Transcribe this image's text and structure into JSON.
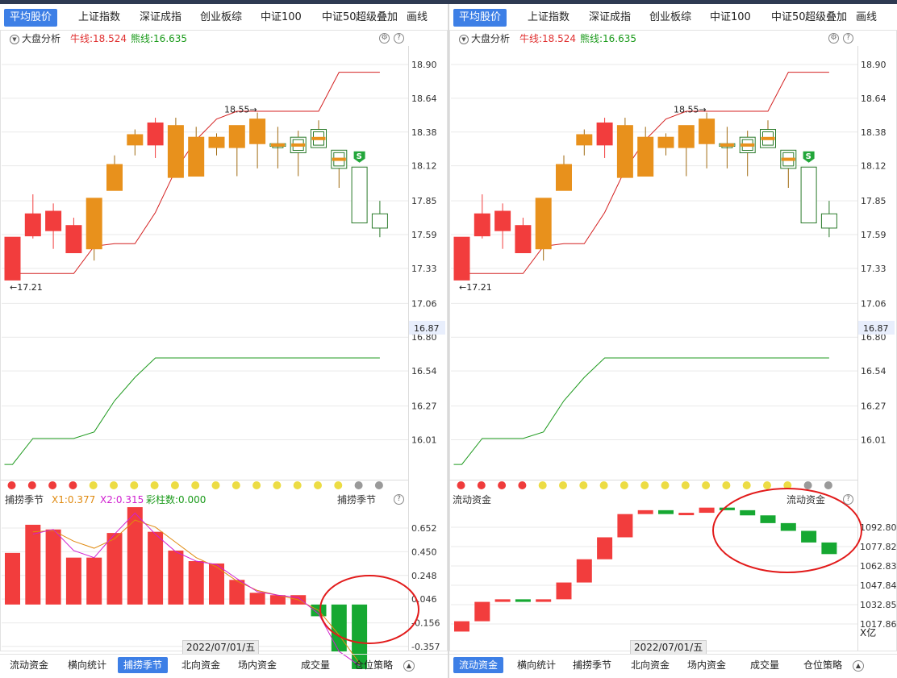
{
  "panels": [
    {
      "tabs": [
        "平均股价",
        "上证指数",
        "深证成指",
        "创业板综",
        "中证100",
        "中证50",
        "超级叠加",
        "画线"
      ],
      "indicator": {
        "name": "大盘分析",
        "bull_label": "牛线:18.524",
        "bear_label": "熊线:16.635"
      },
      "main_axis_ticks": [
        "18.90",
        "18.64",
        "18.38",
        "18.12",
        "17.85",
        "17.59",
        "17.33",
        "17.06",
        "16.80",
        "16.54",
        "16.27",
        "16.01"
      ],
      "price_tag": "16.87",
      "annotations": {
        "high": "18.55→",
        "low": "←17.21",
        "signal": "S"
      },
      "dot_colors": [
        "#ef3b3b",
        "#ef3b3b",
        "#ef3b3b",
        "#ef3b3b",
        "#ecdc44",
        "#ecdc44",
        "#ecdc44",
        "#ecdc44",
        "#ecdc44",
        "#ecdc44",
        "#ecdc44",
        "#ecdc44",
        "#ecdc44",
        "#ecdc44",
        "#ecdc44",
        "#ecdc44",
        "#ecdc44",
        "#9a9a9a",
        "#9a9a9a"
      ],
      "sub": {
        "name": "捕捞季节",
        "right_name": "捕捞季节",
        "x1": "X1:0.377",
        "x2": "X2:0.315",
        "count": "彩柱数:0.000"
      },
      "sub_axis_ticks": [
        "0.652",
        "0.450",
        "0.248",
        "0.046",
        "-0.156",
        "-0.357"
      ],
      "date_label": "2022/07/01/五",
      "bottom_tabs": [
        "流动资金",
        "横向统计",
        "捕捞季节",
        "北向资金",
        "场内资金",
        "成交量",
        "仓位策略"
      ],
      "active_tab": 0,
      "active_bottom": 2
    },
    {
      "tabs": [
        "平均股价",
        "上证指数",
        "深证成指",
        "创业板综",
        "中证100",
        "中证50",
        "超级叠加",
        "画线"
      ],
      "indicator": {
        "name": "大盘分析",
        "bull_label": "牛线:18.524",
        "bear_label": "熊线:16.635"
      },
      "main_axis_ticks": [
        "18.90",
        "18.64",
        "18.38",
        "18.12",
        "17.85",
        "17.59",
        "17.33",
        "17.06",
        "16.80",
        "16.54",
        "16.27",
        "16.01"
      ],
      "price_tag": "16.87",
      "annotations": {
        "high": "18.55→",
        "low": "←17.21",
        "signal": "S"
      },
      "dot_colors": [
        "#ef3b3b",
        "#ef3b3b",
        "#ef3b3b",
        "#ef3b3b",
        "#ecdc44",
        "#ecdc44",
        "#ecdc44",
        "#ecdc44",
        "#ecdc44",
        "#ecdc44",
        "#ecdc44",
        "#ecdc44",
        "#ecdc44",
        "#ecdc44",
        "#ecdc44",
        "#ecdc44",
        "#ecdc44",
        "#9a9a9a",
        "#9a9a9a"
      ],
      "sub": {
        "name": "流动资金",
        "right_name": "流动资金"
      },
      "sub_axis_ticks": [
        "1092.80",
        "1077.82",
        "1062.83",
        "1047.84",
        "1032.85",
        "1017.86"
      ],
      "sub_unit": "X亿",
      "date_label": "2022/07/01/五",
      "bottom_tabs": [
        "流动资金",
        "横向统计",
        "捕捞季节",
        "北向资金",
        "场内资金",
        "成交量",
        "仓位策略"
      ],
      "active_tab": 0,
      "active_bottom": 0
    }
  ],
  "chart_data": [
    {
      "type": "candlestick",
      "title": "大盘分析",
      "y_ticks": [
        18.9,
        18.64,
        18.38,
        18.12,
        17.85,
        17.59,
        17.33,
        17.06,
        16.8,
        16.54,
        16.27,
        16.01
      ],
      "ylim": [
        15.8,
        19.02
      ],
      "candles": [
        {
          "o": 17.57,
          "c": 17.24,
          "h": 17.57,
          "l": 17.24,
          "color": "red"
        },
        {
          "o": 17.58,
          "c": 17.75,
          "h": 17.9,
          "l": 17.56,
          "color": "red"
        },
        {
          "o": 17.62,
          "c": 17.77,
          "h": 17.83,
          "l": 17.48,
          "color": "red"
        },
        {
          "o": 17.45,
          "c": 17.66,
          "h": 17.72,
          "l": 17.45,
          "color": "red"
        },
        {
          "o": 17.87,
          "c": 17.48,
          "h": 17.87,
          "l": 17.39,
          "color": "orange"
        },
        {
          "o": 18.13,
          "c": 17.93,
          "h": 18.2,
          "l": 17.93,
          "color": "orange"
        },
        {
          "o": 18.36,
          "c": 18.28,
          "h": 18.4,
          "l": 18.2,
          "color": "orange"
        },
        {
          "o": 18.28,
          "c": 18.45,
          "h": 18.49,
          "l": 18.18,
          "color": "red"
        },
        {
          "o": 18.43,
          "c": 18.03,
          "h": 18.49,
          "l": 18.03,
          "color": "orange"
        },
        {
          "o": 18.34,
          "c": 18.04,
          "h": 18.42,
          "l": 18.04,
          "color": "orange"
        },
        {
          "o": 18.34,
          "c": 18.26,
          "h": 18.37,
          "l": 18.2,
          "color": "orange"
        },
        {
          "o": 18.43,
          "c": 18.26,
          "h": 18.43,
          "l": 18.04,
          "color": "orange"
        },
        {
          "o": 18.48,
          "c": 18.29,
          "h": 18.53,
          "l": 18.1,
          "color": "orange"
        },
        {
          "o": 18.29,
          "c": 18.27,
          "h": 18.42,
          "l": 18.1,
          "color": "hollow-green-orange"
        },
        {
          "o": 18.34,
          "c": 18.22,
          "h": 18.39,
          "l": 18.04,
          "color": "hollow-green-orange"
        },
        {
          "o": 18.4,
          "c": 18.26,
          "h": 18.47,
          "l": 18.26,
          "color": "hollow-green-orange"
        },
        {
          "o": 18.24,
          "c": 18.1,
          "h": 18.24,
          "l": 17.95,
          "color": "hollow-green-orange"
        },
        {
          "o": 18.11,
          "c": 17.68,
          "h": 18.11,
          "l": 17.68,
          "color": "hollow-green"
        },
        {
          "o": 17.75,
          "c": 17.64,
          "h": 17.85,
          "l": 17.57,
          "color": "hollow-green"
        }
      ],
      "series": [
        {
          "name": "牛线",
          "color": "#d42020",
          "values": [
            17.29,
            17.29,
            17.29,
            17.29,
            17.5,
            17.52,
            17.52,
            17.76,
            18.09,
            18.32,
            18.48,
            18.54,
            18.54,
            18.54,
            18.54,
            18.54,
            18.84,
            18.84,
            18.84
          ]
        },
        {
          "name": "熊线",
          "color": "#1f9a1f",
          "values": [
            15.82,
            16.02,
            16.02,
            16.02,
            16.07,
            16.31,
            16.49,
            16.64,
            16.64,
            16.64,
            16.64,
            16.64,
            16.64,
            16.64,
            16.64,
            16.64,
            16.64,
            16.64,
            16.64
          ]
        }
      ]
    },
    {
      "type": "bar",
      "title": "捕捞季节",
      "y_ticks": [
        0.652,
        0.45,
        0.248,
        0.046,
        -0.156,
        -0.357
      ],
      "ylim": [
        -0.55,
        0.85
      ],
      "values": [
        0.44,
        0.68,
        0.64,
        0.4,
        0.4,
        0.61,
        0.83,
        0.62,
        0.46,
        0.37,
        0.35,
        0.21,
        0.1,
        0.08,
        0.08,
        -0.1,
        -0.4,
        -0.55
      ],
      "series": [
        {
          "name": "X1",
          "color": "#e08a10",
          "values": [
            null,
            0.62,
            0.63,
            0.54,
            0.48,
            0.56,
            0.72,
            0.66,
            0.53,
            0.4,
            0.32,
            0.2,
            0.12,
            0.08,
            0.04,
            -0.05,
            -0.26,
            -0.5
          ]
        },
        {
          "name": "X2",
          "color": "#d020d0",
          "values": [
            null,
            0.6,
            0.64,
            0.46,
            0.4,
            0.6,
            0.78,
            0.6,
            0.45,
            0.37,
            0.34,
            0.22,
            0.11,
            0.08,
            0.06,
            -0.08,
            -0.4,
            -0.52
          ]
        }
      ]
    },
    {
      "type": "candlestick",
      "title": "流动资金",
      "unit": "X亿",
      "y_ticks": [
        1092.8,
        1077.82,
        1062.83,
        1047.84,
        1032.85,
        1017.86
      ],
      "ylim": [
        1008,
        1113
      ],
      "bars": [
        {
          "o": 1012,
          "c": 1020,
          "color": "red"
        },
        {
          "o": 1020,
          "c": 1035,
          "color": "red"
        },
        {
          "o": 1035,
          "c": 1037,
          "color": "red"
        },
        {
          "o": 1037,
          "c": 1035,
          "color": "green"
        },
        {
          "o": 1035,
          "c": 1037,
          "color": "red"
        },
        {
          "o": 1037,
          "c": 1050,
          "color": "red"
        },
        {
          "o": 1050,
          "c": 1068,
          "color": "red"
        },
        {
          "o": 1068,
          "c": 1085,
          "color": "red"
        },
        {
          "o": 1085,
          "c": 1103,
          "color": "red"
        },
        {
          "o": 1103,
          "c": 1106,
          "color": "red"
        },
        {
          "o": 1106,
          "c": 1103,
          "color": "green"
        },
        {
          "o": 1103,
          "c": 1104,
          "color": "red"
        },
        {
          "o": 1104,
          "c": 1108,
          "color": "red"
        },
        {
          "o": 1108,
          "c": 1106,
          "color": "green"
        },
        {
          "o": 1106,
          "c": 1102,
          "color": "green"
        },
        {
          "o": 1102,
          "c": 1096,
          "color": "green"
        },
        {
          "o": 1096,
          "c": 1090,
          "color": "green"
        },
        {
          "o": 1090,
          "c": 1081,
          "color": "green"
        },
        {
          "o": 1081,
          "c": 1072,
          "color": "green"
        }
      ]
    }
  ]
}
